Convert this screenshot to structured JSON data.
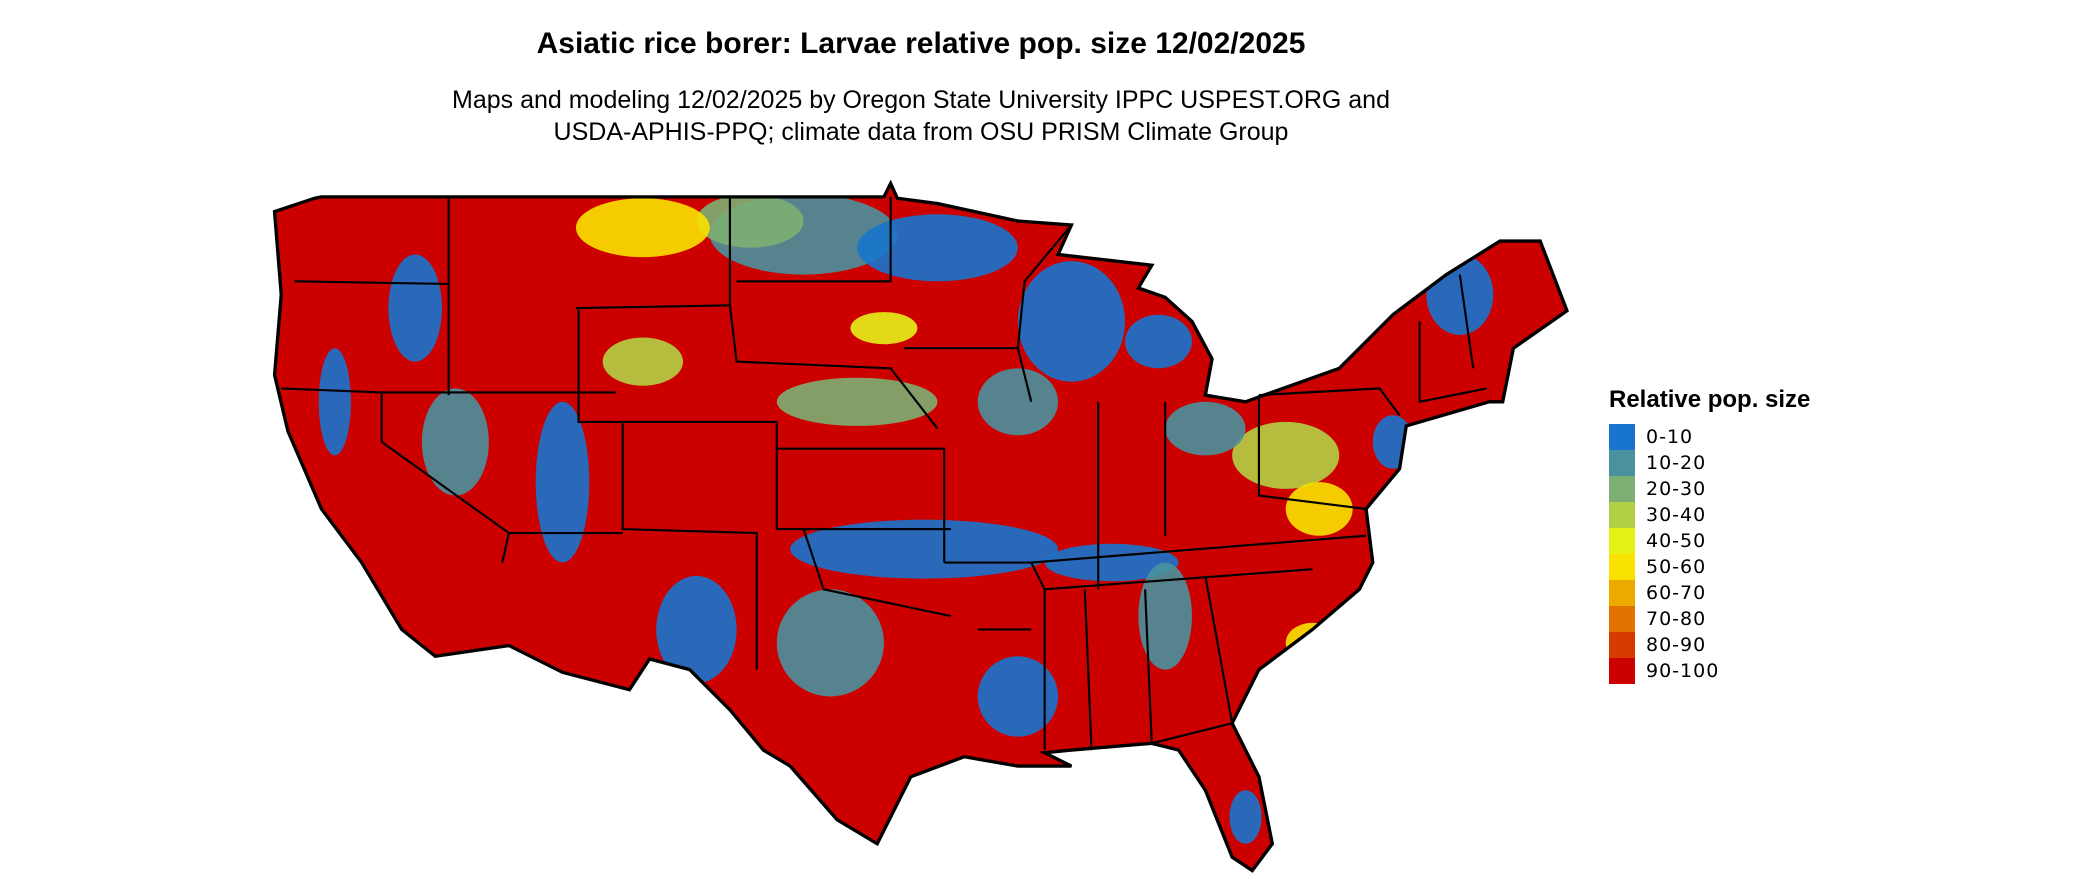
{
  "title": "Asiatic rice borer: Larvae relative pop. size 12/02/2025",
  "subtitle_lines": [
    "Maps and modeling 12/02/2025 by Oregon State University IPPC USPEST.ORG and",
    "USDA-APHIS-PPQ; climate data from OSU PRISM Climate Group"
  ],
  "chart_data": {
    "type": "heatmap",
    "region": "Contiguous United States",
    "title": "Asiatic rice borer: Larvae relative pop. size 12/02/2025",
    "legend": {
      "title": "Relative pop. size",
      "placement": "right",
      "entries": [
        {
          "label": "0-10",
          "color": "#1874CD"
        },
        {
          "label": "10-20",
          "color": "#4A919E"
        },
        {
          "label": "20-30",
          "color": "#7DAF72"
        },
        {
          "label": "30-40",
          "color": "#B2D045"
        },
        {
          "label": "40-50",
          "color": "#E6F118"
        },
        {
          "label": "50-60",
          "color": "#F9E200"
        },
        {
          "label": "60-70",
          "color": "#EEA900"
        },
        {
          "label": "70-80",
          "color": "#E37200"
        },
        {
          "label": "80-90",
          "color": "#D83A00"
        },
        {
          "label": "90-100",
          "color": "#CD0000"
        }
      ]
    }
  }
}
